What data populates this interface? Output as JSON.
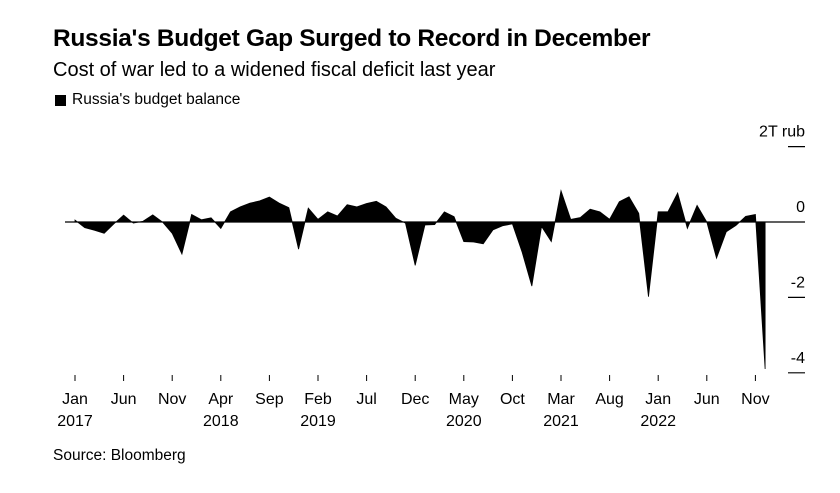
{
  "title": "Russia's Budget Gap Surged to Record in December",
  "subtitle": "Cost of war led to a widened fiscal deficit last year",
  "source": "Source: Bloomberg",
  "chart_data": {
    "type": "area",
    "title": "Russia's Budget Gap Surged to Record in December",
    "subtitle": "Cost of war led to a widened fiscal deficit last year",
    "xlabel": "",
    "ylabel": "2T rub",
    "unit": "trillion rubles",
    "ylim": [
      -4,
      2
    ],
    "y_ticks": [
      {
        "value": 2,
        "label": "2T rub"
      },
      {
        "value": 0,
        "label": "0"
      },
      {
        "value": -2,
        "label": "-2"
      },
      {
        "value": -4,
        "label": "-4"
      }
    ],
    "x_ticks": [
      {
        "index": 0,
        "month": "Jan",
        "year": "2017"
      },
      {
        "index": 5,
        "month": "Jun",
        "year": ""
      },
      {
        "index": 10,
        "month": "Nov",
        "year": ""
      },
      {
        "index": 15,
        "month": "Apr",
        "year": "2018"
      },
      {
        "index": 20,
        "month": "Sep",
        "year": ""
      },
      {
        "index": 25,
        "month": "Feb",
        "year": "2019"
      },
      {
        "index": 30,
        "month": "Jul",
        "year": ""
      },
      {
        "index": 35,
        "month": "Dec",
        "year": ""
      },
      {
        "index": 40,
        "month": "May",
        "year": "2020"
      },
      {
        "index": 45,
        "month": "Oct",
        "year": ""
      },
      {
        "index": 50,
        "month": "Mar",
        "year": "2021"
      },
      {
        "index": 55,
        "month": "Aug",
        "year": ""
      },
      {
        "index": 60,
        "month": "Jan",
        "year": "2022"
      },
      {
        "index": 65,
        "month": "Jun",
        "year": ""
      },
      {
        "index": 70,
        "month": "Nov",
        "year": ""
      }
    ],
    "grid": false,
    "legend": {
      "position": "top-left",
      "entries": [
        "Russia's budget balance"
      ]
    },
    "series": [
      {
        "name": "Russia's budget balance",
        "color": "#000000",
        "start": "Jan 2017",
        "frequency": "monthly",
        "values": [
          0.05,
          -0.15,
          -0.22,
          -0.3,
          -0.05,
          0.18,
          -0.03,
          0.02,
          0.19,
          0.0,
          -0.3,
          -0.85,
          0.2,
          0.06,
          0.11,
          -0.17,
          0.27,
          0.4,
          0.5,
          0.56,
          0.66,
          0.5,
          0.38,
          -0.72,
          0.37,
          0.07,
          0.27,
          0.16,
          0.46,
          0.4,
          0.49,
          0.55,
          0.4,
          0.1,
          -0.03,
          -1.15,
          -0.08,
          -0.07,
          0.27,
          0.14,
          -0.52,
          -0.53,
          -0.58,
          -0.21,
          -0.1,
          -0.05,
          -0.8,
          -1.7,
          -0.12,
          -0.52,
          0.83,
          0.07,
          0.12,
          0.34,
          0.27,
          0.07,
          0.54,
          0.67,
          0.23,
          -1.98,
          0.27,
          0.27,
          0.77,
          -0.17,
          0.44,
          0.0,
          -0.96,
          -0.26,
          -0.09,
          0.15,
          0.2,
          -3.9
        ]
      }
    ]
  }
}
